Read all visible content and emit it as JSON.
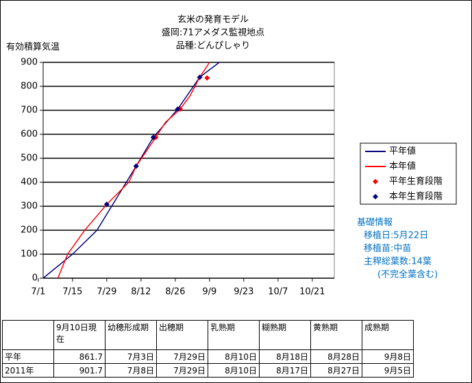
{
  "chart_data": {
    "type": "line",
    "title": [
      "玄米の発育モデル",
      "盛岡:71アメダス監視地点",
      "品種:どんぴしゃり"
    ],
    "ylabel": "有効積算気温",
    "xlim": [
      2,
      121
    ],
    "xticks": [
      {
        "value": 0,
        "label": "7/1"
      },
      {
        "value": 14,
        "label": "7/15"
      },
      {
        "value": 28,
        "label": "7/29"
      },
      {
        "value": 42,
        "label": "8/12"
      },
      {
        "value": 56,
        "label": "8/26"
      },
      {
        "value": 70,
        "label": "9/9"
      },
      {
        "value": 84,
        "label": "9/23"
      },
      {
        "value": 98,
        "label": "10/7"
      },
      {
        "value": 112,
        "label": "10/21"
      }
    ],
    "ylim": [
      0,
      900
    ],
    "yticks": [
      0,
      100,
      200,
      300,
      400,
      500,
      600,
      700,
      800,
      900
    ],
    "grid": true,
    "series": [
      {
        "name": "平年値",
        "color": "#000080",
        "style": "line",
        "x": [
          2,
          14,
          24,
          30,
          40,
          47,
          57,
          66,
          74
        ],
        "values": [
          0,
          100,
          200,
          300,
          467,
          587,
          705,
          838,
          900
        ]
      },
      {
        "name": "本年値",
        "color": "#ff0000",
        "style": "line",
        "x": [
          8,
          12,
          19,
          28,
          37,
          40,
          48,
          52,
          58,
          62,
          66,
          70
        ],
        "values": [
          0,
          100,
          200,
          308,
          400,
          467,
          587,
          650,
          705,
          760,
          838,
          900
        ]
      },
      {
        "name": "平年生育段階",
        "color": "#ff0000",
        "style": "marker",
        "x": [
          28,
          40,
          48,
          58,
          69
        ],
        "values": [
          308,
          467,
          587,
          705,
          835
        ]
      },
      {
        "name": "本年生育段階",
        "color": "#000080",
        "style": "marker",
        "x": [
          28,
          40,
          47,
          57,
          66
        ],
        "values": [
          308,
          467,
          587,
          705,
          838
        ]
      }
    ],
    "annotations": [
      "基礎情報",
      "移植日:5月22日",
      "移植苗:中苗",
      "主稈総葉数:14葉",
      "(不完全葉含む)"
    ]
  },
  "table": {
    "header": [
      "",
      "9月10日現在",
      "幼穂形成期",
      "出穂期",
      "乳熟期",
      "糊熟期",
      "黄熟期",
      "成熟期"
    ],
    "rows": [
      [
        "平年",
        861.7,
        "7月3日",
        "7月29日",
        "8月10日",
        "8月18日",
        "8月28日",
        "9月8日"
      ],
      [
        "2011年",
        901.7,
        "7月8日",
        "7月29日",
        "8月10日",
        "8月17日",
        "8月27日",
        "9月5日"
      ]
    ]
  }
}
